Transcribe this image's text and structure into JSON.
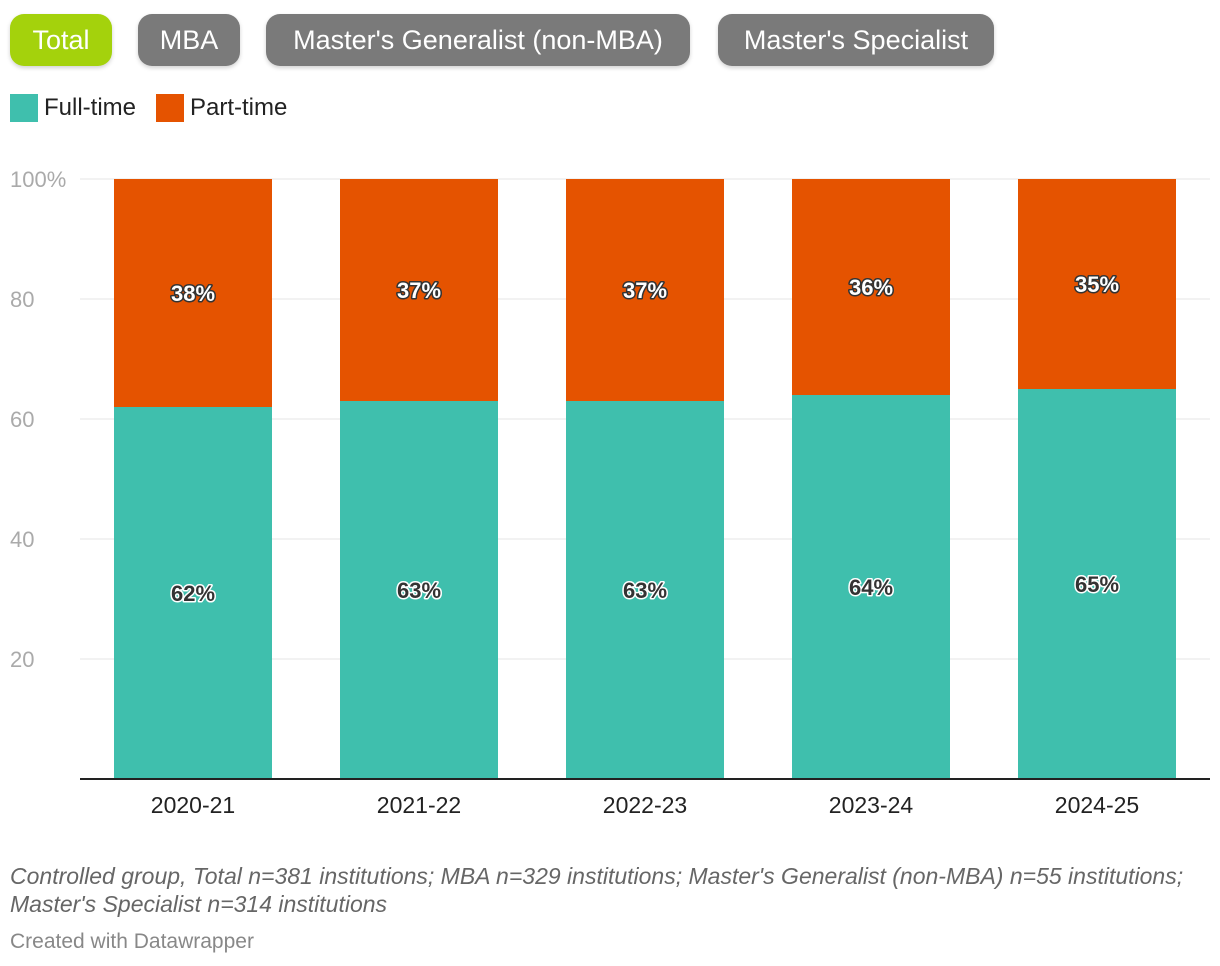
{
  "tabs": [
    {
      "label": "Total",
      "active": true
    },
    {
      "label": "MBA",
      "active": false
    },
    {
      "label": "Master's Generalist (non-MBA)",
      "active": false
    },
    {
      "label": "Master's Specialist",
      "active": false
    }
  ],
  "colors": {
    "active_tab": "#a4d20c",
    "inactive_tab": "#7a7a7a",
    "full_time": "#3fbfad",
    "part_time": "#e55300",
    "grid": "#e4e4e4",
    "axis": "#222222",
    "y_tick_text": "#aaaaaa"
  },
  "chart_data": {
    "type": "bar",
    "stacked": true,
    "categories": [
      "2020-21",
      "2021-22",
      "2022-23",
      "2023-24",
      "2024-25"
    ],
    "series": [
      {
        "name": "Full-time",
        "values": [
          62,
          63,
          63,
          64,
          65
        ],
        "labels": [
          "62%",
          "63%",
          "63%",
          "64%",
          "65%"
        ]
      },
      {
        "name": "Part-time",
        "values": [
          38,
          37,
          37,
          36,
          35
        ],
        "labels": [
          "38%",
          "37%",
          "37%",
          "36%",
          "35%"
        ]
      }
    ],
    "ylim": [
      0,
      100
    ],
    "y_ticks": [
      20,
      40,
      60,
      80,
      100
    ],
    "y_tick_labels": [
      "20",
      "40",
      "60",
      "80",
      "100%"
    ],
    "grid": true,
    "legend_position": "top-left",
    "title": "",
    "xlabel": "",
    "ylabel": ""
  },
  "footnote": "Controlled group, Total n=381 institutions; MBA n=329 institutions; Master's Generalist (non-MBA) n=55 institutions; Master's Specialist n=314 institutions",
  "credit": "Created with Datawrapper"
}
